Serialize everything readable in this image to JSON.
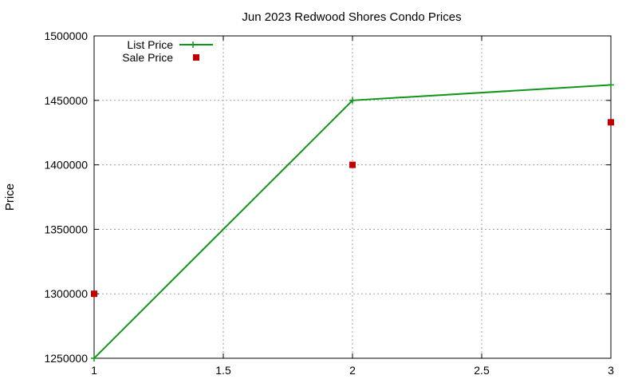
{
  "chart_data": {
    "type": "line",
    "title": "Jun 2023 Redwood Shores Condo Prices",
    "xlabel": "",
    "ylabel": "Price",
    "xlim": [
      1,
      3
    ],
    "ylim": [
      1250000,
      1500000
    ],
    "xticks": [
      "1",
      "1.5",
      "2",
      "2.5",
      "3"
    ],
    "yticks": [
      "1250000",
      "1300000",
      "1350000",
      "1400000",
      "1450000",
      "1500000"
    ],
    "grid": true,
    "legend_position": "top-left",
    "series": [
      {
        "name": "List Price",
        "style": "lines+points",
        "marker": "plus",
        "color": "#109618",
        "x": [
          1,
          2,
          3
        ],
        "y": [
          1250000,
          1450000,
          1462000
        ]
      },
      {
        "name": "Sale Price",
        "style": "points",
        "marker": "square",
        "color": "#c00000",
        "x": [
          1,
          2,
          3
        ],
        "y": [
          1300000,
          1400000,
          1433000
        ]
      }
    ]
  }
}
